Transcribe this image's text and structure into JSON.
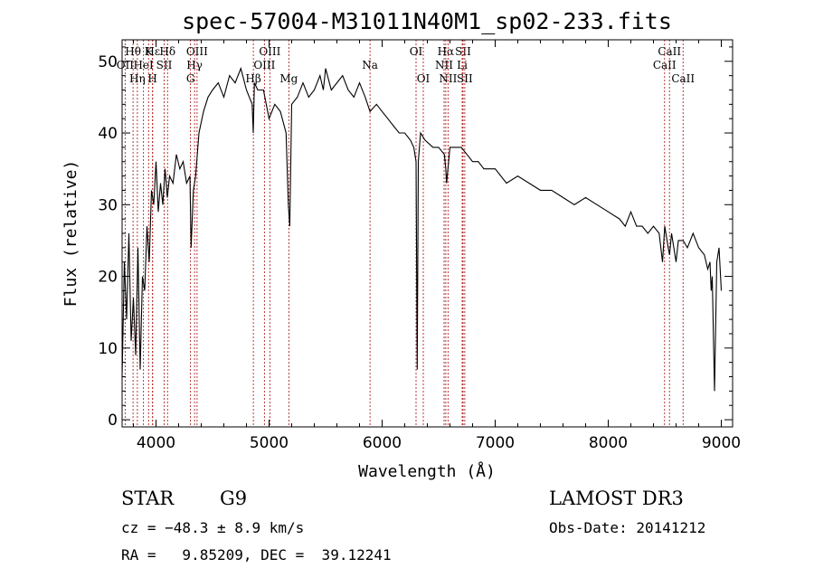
{
  "chart_data": {
    "type": "line",
    "title": "spec-57004-M31011N40M1_sp02-233.fits",
    "xlabel": "Wavelength (Å)",
    "ylabel": "Flux (relative)",
    "xlim": [
      3700,
      9100
    ],
    "ylim": [
      -1,
      53
    ],
    "x_ticks": [
      4000,
      5000,
      6000,
      7000,
      8000,
      9000
    ],
    "y_ticks": [
      0,
      10,
      20,
      30,
      40,
      50
    ],
    "grid": false,
    "series": [
      {
        "x": [
          3700,
          3720,
          3740,
          3760,
          3780,
          3800,
          3820,
          3840,
          3860,
          3880,
          3900,
          3920,
          3940,
          3960,
          3980,
          4000,
          4020,
          4040,
          4060,
          4080,
          4100,
          4120,
          4150,
          4180,
          4210,
          4240,
          4270,
          4300,
          4310,
          4330,
          4350,
          4380,
          4420,
          4460,
          4500,
          4550,
          4600,
          4650,
          4700,
          4750,
          4800,
          4850,
          4860,
          4870,
          4900,
          4950,
          5000,
          5050,
          5100,
          5150,
          5170,
          5183,
          5200,
          5250,
          5300,
          5350,
          5400,
          5450,
          5480,
          5500,
          5550,
          5600,
          5650,
          5700,
          5750,
          5800,
          5850,
          5893,
          5950,
          6000,
          6050,
          6100,
          6150,
          6200,
          6250,
          6280,
          6300,
          6310,
          6320,
          6340,
          6380,
          6450,
          6500,
          6550,
          6563,
          6570,
          6600,
          6650,
          6700,
          6750,
          6800,
          6850,
          6900,
          7000,
          7100,
          7200,
          7300,
          7400,
          7500,
          7600,
          7700,
          7800,
          7900,
          8000,
          8100,
          8150,
          8200,
          8250,
          8300,
          8350,
          8400,
          8450,
          8480,
          8500,
          8530,
          8542,
          8560,
          8600,
          8620,
          8662,
          8700,
          8750,
          8800,
          8850,
          8880,
          8900,
          8910,
          8920,
          8940,
          8960,
          8980,
          9000
        ],
        "y": [
          6,
          22,
          14,
          26,
          11,
          17,
          9,
          24,
          7,
          20,
          18,
          27,
          22,
          32,
          30,
          36,
          29,
          33,
          30,
          35,
          31,
          34,
          33,
          37,
          35,
          36,
          33,
          34,
          24,
          32,
          34,
          40,
          43,
          45,
          46,
          47,
          45,
          48,
          47,
          49,
          46,
          44,
          40,
          47,
          46,
          46,
          42,
          44,
          43,
          40,
          30,
          27,
          44,
          45,
          47,
          45,
          46,
          48,
          46,
          49,
          46,
          47,
          48,
          46,
          45,
          47,
          45,
          43,
          44,
          43,
          42,
          41,
          40,
          40,
          39,
          38,
          36,
          7,
          36,
          40,
          39,
          38,
          38,
          37,
          35,
          33,
          38,
          38,
          38,
          37,
          36,
          36,
          35,
          35,
          33,
          34,
          33,
          32,
          32,
          31,
          30,
          31,
          30,
          29,
          28,
          27,
          29,
          27,
          27,
          26,
          27,
          26,
          22,
          27,
          24,
          23,
          26,
          22,
          25,
          25,
          24,
          26,
          24,
          23,
          21,
          22,
          18,
          20,
          4,
          22,
          24,
          18
        ]
      }
    ],
    "lines": [
      {
        "label": "Hθ",
        "x": 3797,
        "row": 0
      },
      {
        "label": "OII",
        "x": 3727,
        "row": 1
      },
      {
        "label": "Hη",
        "x": 3835,
        "row": 2
      },
      {
        "label": "HeI",
        "x": 3889,
        "row": 1
      },
      {
        "label": "K",
        "x": 3934,
        "row": 0
      },
      {
        "label": "H",
        "x": 3969,
        "row": 2
      },
      {
        "label": "Hε",
        "x": 3970,
        "row": 0
      },
      {
        "label": "SII",
        "x": 4072,
        "row": 1
      },
      {
        "label": "Hδ",
        "x": 4102,
        "row": 0
      },
      {
        "label": "G",
        "x": 4305,
        "row": 2
      },
      {
        "label": "OIII",
        "x": 4363,
        "row": 0
      },
      {
        "label": "Hγ",
        "x": 4341,
        "row": 1
      },
      {
        "label": "Hβ",
        "x": 4861,
        "row": 2
      },
      {
        "label": "OIII",
        "x": 4959,
        "row": 1
      },
      {
        "label": "OIII",
        "x": 5007,
        "row": 0
      },
      {
        "label": "Mg",
        "x": 5175,
        "row": 2
      },
      {
        "label": "Na",
        "x": 5893,
        "row": 1
      },
      {
        "label": "OI",
        "x": 6300,
        "row": 0
      },
      {
        "label": "OI",
        "x": 6364,
        "row": 2
      },
      {
        "label": "NII",
        "x": 6548,
        "row": 1
      },
      {
        "label": "Hα",
        "x": 6563,
        "row": 0
      },
      {
        "label": "NII",
        "x": 6583,
        "row": 2
      },
      {
        "label": "Li",
        "x": 6708,
        "row": 1
      },
      {
        "label": "SII",
        "x": 6716,
        "row": 0
      },
      {
        "label": "SII",
        "x": 6731,
        "row": 2
      },
      {
        "label": "CaII",
        "x": 8498,
        "row": 1
      },
      {
        "label": "CaII",
        "x": 8542,
        "row": 0
      },
      {
        "label": "CaII",
        "x": 8662,
        "row": 2
      }
    ]
  },
  "info": {
    "class": "STAR",
    "subclass": "G9",
    "survey": "LAMOST DR3",
    "cz": "cz = −48.3 ± 8.9 km/s",
    "obs_date": "Obs-Date: 20141212",
    "radec": "RA =   9.85209, DEC =  39.12241"
  }
}
